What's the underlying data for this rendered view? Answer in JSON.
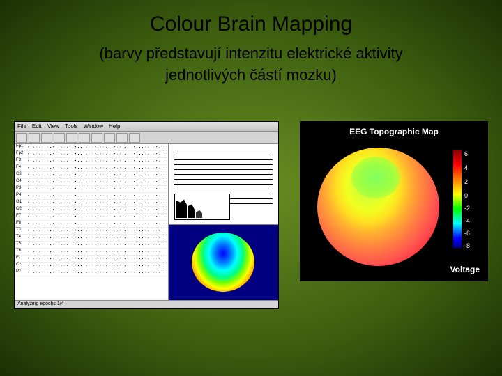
{
  "title": "Colour Brain Mapping",
  "subtitle_line1": "(barvy představují intenzitu elektrické aktivity",
  "subtitle_line2": "jednotlivých částí mozku)",
  "left_screenshot": {
    "menu_items": [
      "File",
      "Edit",
      "View",
      "Tools",
      "Window",
      "Help"
    ],
    "channel_labels": [
      "Fp1",
      "Fp2",
      "F3",
      "F4",
      "C3",
      "C4",
      "P3",
      "P4",
      "O1",
      "O2",
      "F7",
      "F8",
      "T3",
      "T4",
      "T5",
      "T6",
      "Fz",
      "Cz",
      "Pz"
    ],
    "status_text": "Analyzing epochs 1/4",
    "bg_color": "#c0c0c0",
    "brain_map_bg": "#000080",
    "small_brain_gradient": [
      "#0000ff",
      "#0080ff",
      "#00ffff",
      "#00ff80",
      "#80ff00",
      "#ffff00",
      "#ff8000",
      "#ff0000"
    ]
  },
  "right_map": {
    "title": "EEG Topographic Map",
    "voltage_label": "Voltage",
    "bg_color": "#000000",
    "brain_gradient": [
      "#c0ff40",
      "#f0ff20",
      "#ffb030",
      "#ff5050",
      "#e00020"
    ],
    "colorbar": {
      "gradient": [
        "#8b0000",
        "#ff0000",
        "#ff8000",
        "#ffff00",
        "#00ff00",
        "#00ffff",
        "#0000ff",
        "#00008b"
      ],
      "ticks": [
        {
          "value": "6",
          "pos": 0
        },
        {
          "value": "4",
          "pos": 20
        },
        {
          "value": "2",
          "pos": 40
        },
        {
          "value": "0",
          "pos": 60
        },
        {
          "value": "-2",
          "pos": 78
        },
        {
          "value": "-4",
          "pos": 96
        },
        {
          "value": "-6",
          "pos": 114
        },
        {
          "value": "-8",
          "pos": 132
        }
      ]
    }
  }
}
